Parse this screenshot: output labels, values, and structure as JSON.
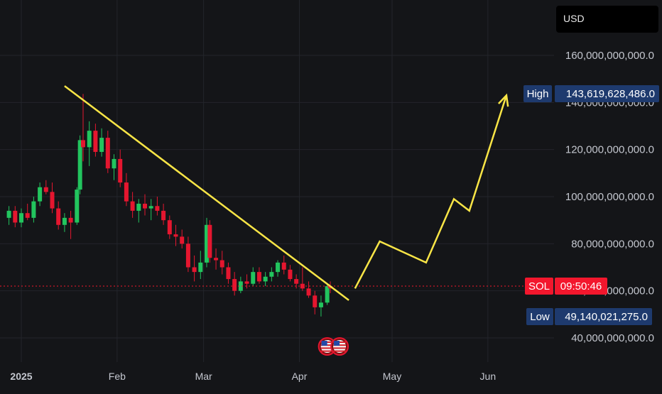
{
  "currency": "USD",
  "colors": {
    "up": "#22c55e",
    "down": "#e5162f",
    "alt": "#a855f7",
    "trend": "#f9e546",
    "price_tag": "#f3172d",
    "hl_tag": "#1e3a6e",
    "grid": "#23252b"
  },
  "markers": {
    "high": {
      "label": "High",
      "value": "143,619,628,486.0"
    },
    "low": {
      "label": "Low",
      "value": "49,140,021,275.0"
    },
    "current": {
      "label": "SOL",
      "time": "09:50:46",
      "value": 62000000000
    }
  },
  "event_icons": [
    "us-flag-icon",
    "us-flag-icon"
  ],
  "chart_data": {
    "type": "candlestick",
    "title": "",
    "ylabel": "",
    "xlabel": "",
    "ylim": [
      30000000000,
      170000000000
    ],
    "xlim": [
      "2024-12-28",
      "2025-06-20"
    ],
    "y_ticks": [
      {
        "value": 160000000000,
        "label": "160,000,000,000.0"
      },
      {
        "value": 140000000000,
        "label": "140,000,000,000.0"
      },
      {
        "value": 120000000000,
        "label": "120,000,000,000.0"
      },
      {
        "value": 100000000000,
        "label": "100,000,000,000.0"
      },
      {
        "value": 80000000000,
        "label": "80,000,000,000.0"
      },
      {
        "value": 60000000000,
        "label": "60,000,000,000.0"
      },
      {
        "value": 40000000000,
        "label": "40,000,000,000.0"
      }
    ],
    "x_ticks": [
      {
        "date": "2025-01-01",
        "label": "2025",
        "bold": true
      },
      {
        "date": "2025-02-01",
        "label": "Feb"
      },
      {
        "date": "2025-03-01",
        "label": "Mar"
      },
      {
        "date": "2025-04-01",
        "label": "Apr"
      },
      {
        "date": "2025-05-01",
        "label": "May"
      },
      {
        "date": "2025-06-01",
        "label": "Jun"
      }
    ],
    "grid": true,
    "candles": [
      {
        "date": "2024-12-28",
        "o": 91,
        "h": 96,
        "l": 88,
        "c": 94
      },
      {
        "date": "2024-12-30",
        "o": 94,
        "h": 96,
        "l": 87,
        "c": 89
      },
      {
        "date": "2025-01-01",
        "o": 89,
        "h": 95,
        "l": 87,
        "c": 93
      },
      {
        "date": "2025-01-03",
        "o": 93,
        "h": 97,
        "l": 90,
        "c": 91
      },
      {
        "date": "2025-01-05",
        "o": 91,
        "h": 100,
        "l": 89,
        "c": 98
      },
      {
        "date": "2025-01-07",
        "o": 98,
        "h": 106,
        "l": 96,
        "c": 104
      },
      {
        "date": "2025-01-09",
        "o": 104,
        "h": 107,
        "l": 101,
        "c": 102
      },
      {
        "date": "2025-01-11",
        "o": 102,
        "h": 106,
        "l": 93,
        "c": 95
      },
      {
        "date": "2025-01-13",
        "o": 95,
        "h": 98,
        "l": 86,
        "c": 88
      },
      {
        "date": "2025-01-15",
        "o": 88,
        "h": 93,
        "l": 85,
        "c": 91
      },
      {
        "date": "2025-01-17",
        "o": 91,
        "h": 94,
        "l": 82,
        "c": 89
      },
      {
        "date": "2025-01-19",
        "o": 89,
        "h": 104,
        "l": 88,
        "c": 103
      },
      {
        "date": "2025-01-20",
        "o": 103,
        "h": 126,
        "l": 101,
        "c": 124
      },
      {
        "date": "2025-01-21",
        "o": 124,
        "h": 143.6,
        "l": 115,
        "c": 121
      },
      {
        "date": "2025-01-23",
        "o": 121,
        "h": 132,
        "l": 113,
        "c": 128
      },
      {
        "date": "2025-01-25",
        "o": 128,
        "h": 131,
        "l": 117,
        "c": 119
      },
      {
        "date": "2025-01-27",
        "o": 119,
        "h": 129,
        "l": 117,
        "c": 125
      },
      {
        "date": "2025-01-29",
        "o": 125,
        "h": 128,
        "l": 110,
        "c": 112
      },
      {
        "date": "2025-01-31",
        "o": 112,
        "h": 118,
        "l": 107,
        "c": 116
      },
      {
        "date": "2025-02-02",
        "o": 116,
        "h": 120,
        "l": 104,
        "c": 106
      },
      {
        "date": "2025-02-04",
        "o": 106,
        "h": 110,
        "l": 96,
        "c": 98
      },
      {
        "date": "2025-02-06",
        "o": 98,
        "h": 102,
        "l": 91,
        "c": 94
      },
      {
        "date": "2025-02-08",
        "o": 94,
        "h": 99,
        "l": 89,
        "c": 97
      },
      {
        "date": "2025-02-10",
        "o": 97,
        "h": 101,
        "l": 92,
        "c": 95
      },
      {
        "date": "2025-02-12",
        "o": 95,
        "h": 99,
        "l": 90,
        "c": 96
      },
      {
        "date": "2025-02-14",
        "o": 96,
        "h": 100,
        "l": 92,
        "c": 94
      },
      {
        "date": "2025-02-16",
        "o": 94,
        "h": 97,
        "l": 88,
        "c": 90
      },
      {
        "date": "2025-02-18",
        "o": 90,
        "h": 92,
        "l": 82,
        "c": 84
      },
      {
        "date": "2025-02-20",
        "o": 84,
        "h": 88,
        "l": 79,
        "c": 83
      },
      {
        "date": "2025-02-22",
        "o": 83,
        "h": 86,
        "l": 78,
        "c": 80
      },
      {
        "date": "2025-02-24",
        "o": 80,
        "h": 83,
        "l": 68,
        "c": 70
      },
      {
        "date": "2025-02-26",
        "o": 70,
        "h": 75,
        "l": 64,
        "c": 68
      },
      {
        "date": "2025-02-28",
        "o": 68,
        "h": 77,
        "l": 65,
        "c": 72
      },
      {
        "date": "2025-03-02",
        "o": 72,
        "h": 91,
        "l": 70,
        "c": 88
      },
      {
        "date": "2025-03-03",
        "o": 88,
        "h": 90,
        "l": 72,
        "c": 74
      },
      {
        "date": "2025-03-05",
        "o": 74,
        "h": 78,
        "l": 69,
        "c": 73
      },
      {
        "date": "2025-03-07",
        "o": 73,
        "h": 77,
        "l": 67,
        "c": 70
      },
      {
        "date": "2025-03-09",
        "o": 70,
        "h": 72,
        "l": 63,
        "c": 65
      },
      {
        "date": "2025-03-11",
        "o": 65,
        "h": 68,
        "l": 58,
        "c": 60
      },
      {
        "date": "2025-03-13",
        "o": 60,
        "h": 66,
        "l": 59,
        "c": 64
      },
      {
        "date": "2025-03-15",
        "o": 64,
        "h": 67,
        "l": 61,
        "c": 63
      },
      {
        "date": "2025-03-17",
        "o": 63,
        "h": 70,
        "l": 62,
        "c": 68
      },
      {
        "date": "2025-03-19",
        "o": 68,
        "h": 70,
        "l": 63,
        "c": 64
      },
      {
        "date": "2025-03-21",
        "o": 64,
        "h": 68,
        "l": 62,
        "c": 66
      },
      {
        "date": "2025-03-23",
        "o": 66,
        "h": 70,
        "l": 64,
        "c": 68
      },
      {
        "date": "2025-03-25",
        "o": 68,
        "h": 73,
        "l": 66,
        "c": 72
      },
      {
        "date": "2025-03-27",
        "o": 72,
        "h": 75,
        "l": 67,
        "c": 69
      },
      {
        "date": "2025-03-29",
        "o": 69,
        "h": 71,
        "l": 64,
        "c": 65
      },
      {
        "date": "2025-03-31",
        "o": 65,
        "h": 67,
        "l": 61,
        "c": 63
      },
      {
        "date": "2025-04-02",
        "o": 63,
        "h": 70,
        "l": 60,
        "c": 61
      },
      {
        "date": "2025-04-04",
        "o": 61,
        "h": 64,
        "l": 57,
        "c": 58
      },
      {
        "date": "2025-04-06",
        "o": 58,
        "h": 60,
        "l": 50,
        "c": 53
      },
      {
        "date": "2025-04-08",
        "o": 53,
        "h": 58,
        "l": 49.1,
        "c": 55
      },
      {
        "date": "2025-04-10",
        "o": 55,
        "h": 63,
        "l": 54,
        "c": 62
      },
      {
        "date": "2025-04-11",
        "o": 62,
        "h": 64,
        "l": 59,
        "c": 61
      }
    ],
    "trendline": [
      {
        "date": "2025-01-15",
        "value": 147
      },
      {
        "date": "2025-04-17",
        "value": 56
      }
    ],
    "projection": [
      {
        "date": "2025-04-19",
        "value": 61
      },
      {
        "date": "2025-04-27",
        "value": 81
      },
      {
        "date": "2025-05-12",
        "value": 72
      },
      {
        "date": "2025-05-21",
        "value": 99
      },
      {
        "date": "2025-05-26",
        "value": 94
      },
      {
        "date": "2025-06-07",
        "value": 143
      }
    ],
    "events": [
      {
        "date": "2025-04-10"
      },
      {
        "date": "2025-04-14"
      }
    ]
  }
}
